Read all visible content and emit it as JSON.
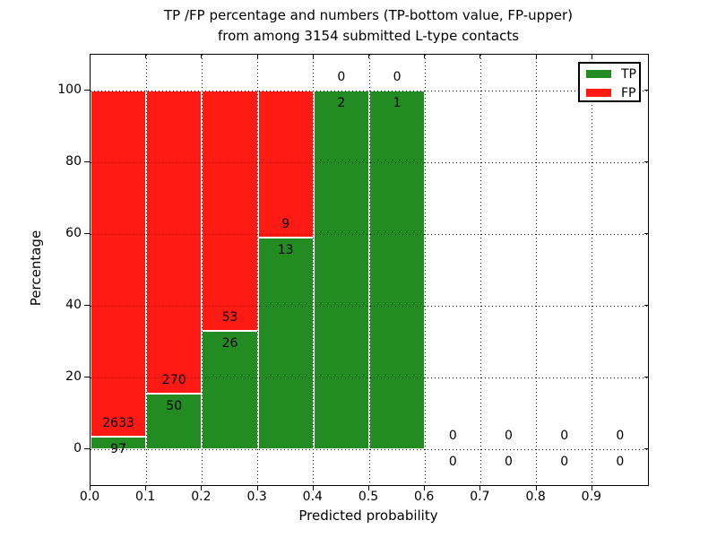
{
  "title": {
    "line1": "TP /FP percentage and numbers (TP-bottom value, FP-upper)",
    "line2": "from among 3154 submitted L-type contacts"
  },
  "axes": {
    "xlabel": "Predicted probability",
    "ylabel": "Percentage",
    "x_tick_labels": [
      "0.0",
      "0.1",
      "0.2",
      "0.3",
      "0.4",
      "0.5",
      "0.6",
      "0.7",
      "0.8",
      "0.9"
    ],
    "y_tick_labels": [
      "0",
      "20",
      "40",
      "60",
      "80",
      "100"
    ]
  },
  "legend": {
    "items": [
      {
        "label": "TP",
        "color": "#228b22"
      },
      {
        "label": "FP",
        "color": "#ff1a14"
      }
    ]
  },
  "colors": {
    "tp": "#228b22",
    "fp": "#ff1a14",
    "axis": "#000000",
    "background": "#ffffff"
  },
  "chart_data": {
    "type": "bar",
    "stacked": true,
    "title": "TP /FP percentage and numbers (TP-bottom value, FP-upper) from among 3154 submitted L-type contacts",
    "xlabel": "Predicted probability",
    "ylabel": "Percentage",
    "bins": [
      "0.0-0.1",
      "0.1-0.2",
      "0.2-0.3",
      "0.3-0.4",
      "0.4-0.5",
      "0.5-0.6",
      "0.6-0.7",
      "0.7-0.8",
      "0.8-0.9",
      "0.9-1.0"
    ],
    "series": [
      {
        "name": "TP",
        "color": "#228b22",
        "counts": [
          97,
          50,
          26,
          13,
          2,
          1,
          0,
          0,
          0,
          0
        ]
      },
      {
        "name": "FP",
        "color": "#ff1a14",
        "counts": [
          2633,
          270,
          53,
          9,
          0,
          0,
          0,
          0,
          0,
          0
        ]
      }
    ],
    "tp_percent": [
      3.55,
      15.63,
      32.91,
      59.09,
      100,
      100,
      0,
      0,
      0,
      0
    ],
    "total_contacts": 3154,
    "xlim": [
      0,
      1.0
    ],
    "ylim": [
      -10,
      110
    ],
    "grid": true,
    "legend_position": "upper right"
  }
}
